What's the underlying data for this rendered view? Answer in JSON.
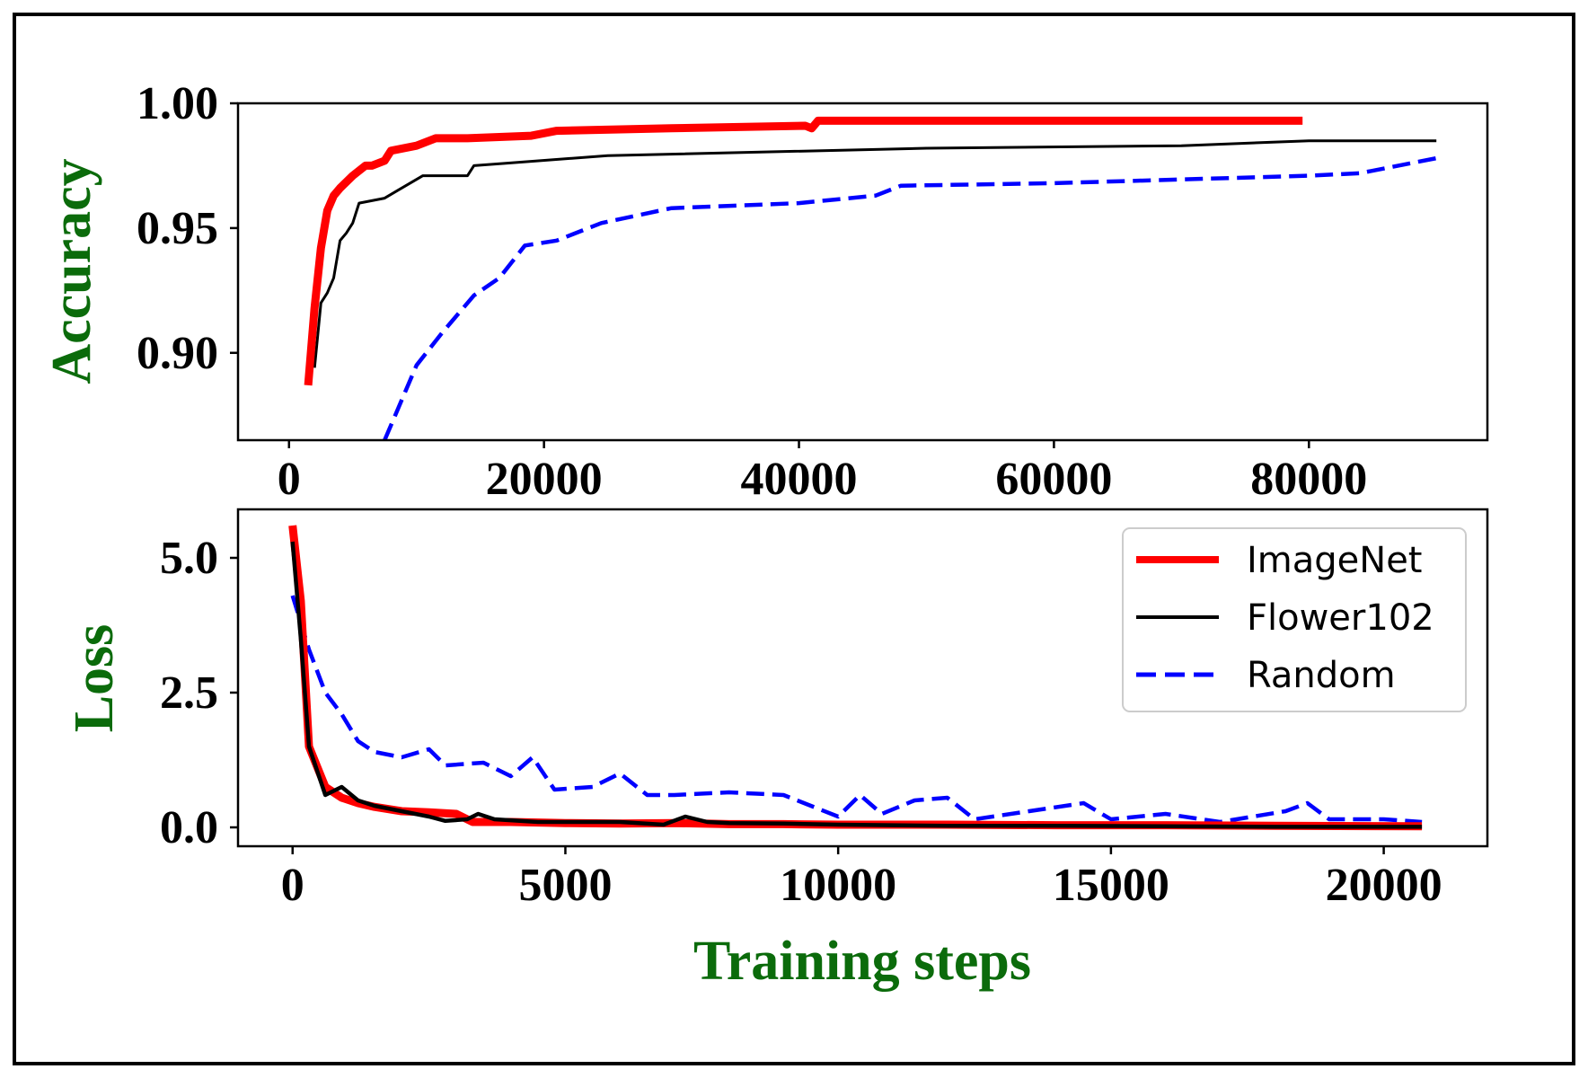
{
  "chart_data": [
    {
      "type": "line",
      "panel": "top",
      "ylabel": "Accuracy",
      "xlabel": "",
      "xlim": [
        -4000,
        94000
      ],
      "ylim": [
        0.865,
        1.0
      ],
      "xticks": [
        0,
        20000,
        40000,
        60000,
        80000
      ],
      "xtick_labels": [
        "0",
        "20000",
        "40000",
        "60000",
        "80000"
      ],
      "yticks": [
        0.9,
        0.95,
        1.0
      ],
      "ytick_labels": [
        "0.90",
        "0.95",
        "1.00"
      ],
      "series": [
        {
          "name": "ImageNet",
          "color": "#ff0000",
          "style": "solid",
          "width": "thick",
          "x": [
            1500,
            2000,
            2500,
            3000,
            3500,
            4000,
            5000,
            6000,
            6500,
            7500,
            8000,
            10000,
            11500,
            14000,
            19000,
            21000,
            30000,
            40500,
            41000,
            41500,
            60000,
            79500
          ],
          "y": [
            0.887,
            0.918,
            0.942,
            0.957,
            0.963,
            0.966,
            0.971,
            0.975,
            0.975,
            0.977,
            0.981,
            0.983,
            0.986,
            0.986,
            0.987,
            0.989,
            0.99,
            0.991,
            0.99,
            0.993,
            0.993,
            0.993
          ]
        },
        {
          "name": "Flower102",
          "color": "#000000",
          "style": "solid",
          "width": "thin",
          "x": [
            2000,
            2500,
            3000,
            3500,
            4000,
            4500,
            5000,
            5500,
            7500,
            8500,
            10500,
            14000,
            14500,
            17000,
            25000,
            50000,
            70000,
            80000,
            90000
          ],
          "y": [
            0.894,
            0.92,
            0.924,
            0.93,
            0.945,
            0.948,
            0.952,
            0.96,
            0.962,
            0.965,
            0.971,
            0.971,
            0.975,
            0.976,
            0.979,
            0.982,
            0.983,
            0.985,
            0.985
          ],
          "y_adjust": [
            0,
            0,
            0,
            0,
            0,
            0,
            0,
            0,
            0,
            0,
            0,
            0,
            0,
            0,
            0,
            0,
            0,
            0,
            0
          ]
        },
        {
          "name": "Random",
          "color": "#0000ff",
          "style": "dashed",
          "width": "medium",
          "x": [
            7500,
            8500,
            10000,
            12000,
            14500,
            16500,
            18500,
            21000,
            24500,
            30000,
            40000,
            46000,
            48000,
            60000,
            80000,
            84000,
            90000
          ],
          "y": [
            0.865,
            0.877,
            0.895,
            0.908,
            0.923,
            0.93,
            0.943,
            0.945,
            0.952,
            0.958,
            0.96,
            0.963,
            0.967,
            0.968,
            0.971,
            0.972,
            0.978
          ]
        }
      ]
    },
    {
      "type": "line",
      "panel": "bottom",
      "ylabel": "Loss",
      "xlabel": "Training steps",
      "xlim": [
        -1000,
        21900
      ],
      "ylim": [
        -0.35,
        5.9
      ],
      "xticks": [
        0,
        5000,
        10000,
        15000,
        20000
      ],
      "xtick_labels": [
        "0",
        "5000",
        "10000",
        "15000",
        "20000"
      ],
      "yticks": [
        0.0,
        2.5,
        5.0
      ],
      "ytick_labels": [
        "0.0",
        "2.5",
        "5.0"
      ],
      "legend": {
        "position": "top-right",
        "entries": [
          "ImageNet",
          "Flower102",
          "Random"
        ]
      },
      "series": [
        {
          "name": "ImageNet",
          "color": "#ff0000",
          "style": "solid",
          "width": "thick",
          "x": [
            0,
            150,
            300,
            600,
            900,
            1200,
            1500,
            2000,
            2500,
            3000,
            3300,
            4000,
            5000,
            6000,
            7000,
            8000,
            9000,
            10000,
            12000,
            14000,
            16000,
            18000,
            20700
          ],
          "y": [
            5.6,
            4.2,
            1.5,
            0.75,
            0.55,
            0.45,
            0.38,
            0.3,
            0.28,
            0.25,
            0.1,
            0.1,
            0.08,
            0.07,
            0.08,
            0.06,
            0.06,
            0.05,
            0.05,
            0.04,
            0.04,
            0.03,
            0.02
          ]
        },
        {
          "name": "Flower102",
          "color": "#000000",
          "style": "solid",
          "width": "medium",
          "x": [
            0,
            150,
            300,
            600,
            900,
            1200,
            1500,
            2000,
            2500,
            2800,
            3200,
            3400,
            3700,
            4500,
            5000,
            6000,
            6800,
            7200,
            7600,
            8000,
            9000,
            10000,
            12000,
            14000,
            16000,
            18000,
            20700
          ],
          "y": [
            5.3,
            3.5,
            1.5,
            0.6,
            0.75,
            0.5,
            0.4,
            0.3,
            0.2,
            0.12,
            0.15,
            0.25,
            0.15,
            0.1,
            0.1,
            0.1,
            0.05,
            0.2,
            0.1,
            0.08,
            0.07,
            0.05,
            0.03,
            0.03,
            0.02,
            0.01,
            0.01
          ]
        },
        {
          "name": "Random",
          "color": "#0000ff",
          "style": "dashed",
          "width": "medium",
          "x": [
            0,
            300,
            600,
            900,
            1200,
            1500,
            2000,
            2500,
            2800,
            3500,
            4000,
            4400,
            4800,
            5500,
            6000,
            6500,
            7000,
            8000,
            9000,
            10000,
            10400,
            10800,
            11400,
            12000,
            12500,
            13500,
            14500,
            15000,
            16000,
            17000,
            18200,
            18600,
            19000,
            20000,
            20700
          ],
          "y": [
            4.3,
            3.3,
            2.5,
            2.1,
            1.6,
            1.4,
            1.3,
            1.45,
            1.15,
            1.2,
            0.95,
            1.3,
            0.7,
            0.75,
            1.0,
            0.6,
            0.6,
            0.65,
            0.6,
            0.2,
            0.6,
            0.25,
            0.5,
            0.55,
            0.15,
            0.3,
            0.45,
            0.15,
            0.25,
            0.1,
            0.3,
            0.45,
            0.15,
            0.15,
            0.1
          ]
        }
      ]
    }
  ]
}
